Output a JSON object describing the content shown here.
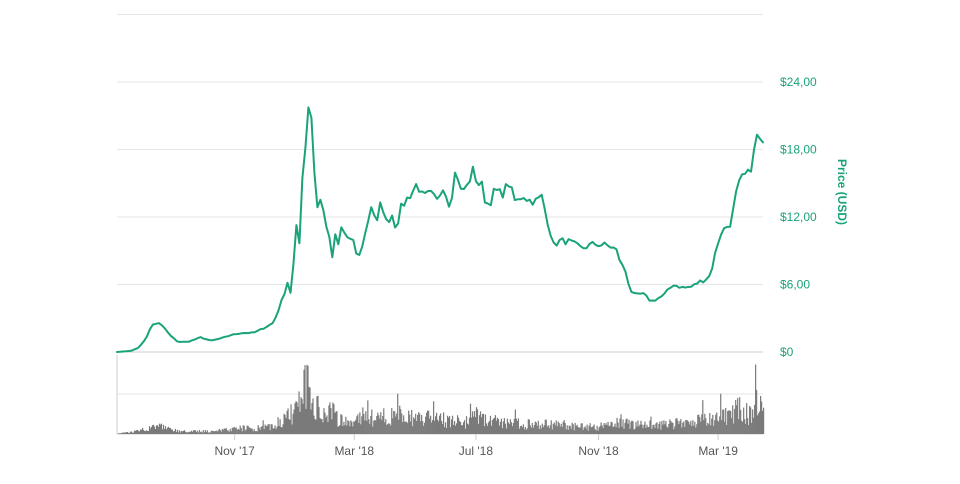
{
  "chart_data": {
    "type": "line",
    "title": "",
    "xlabel": "",
    "ylabel": "Price (USD)",
    "ylim": [
      0,
      28.8
    ],
    "y_tick_labels": [
      "$0",
      "$6,00",
      "$12,00",
      "$18,00",
      "$24,00"
    ],
    "x_tick_labels": [
      "Nov '17",
      "Mar '18",
      "Jul '18",
      "Nov '18",
      "Mar '19"
    ],
    "x_tick_dates": [
      "2017-11-01",
      "2018-03-01",
      "2018-07-01",
      "2018-11-01",
      "2019-03-01"
    ],
    "grid": true,
    "colors": {
      "price": "#1aa37a",
      "volume": "#7a7a7a",
      "grid": "#e6e6e6"
    },
    "series": [
      {
        "kind": "price",
        "x": [
          "2017-07-06",
          "2017-07-20",
          "2017-07-28",
          "2017-08-04",
          "2017-08-10",
          "2017-08-16",
          "2017-08-22",
          "2017-08-28",
          "2017-09-05",
          "2017-09-15",
          "2017-09-28",
          "2017-10-08",
          "2017-10-18",
          "2017-10-28",
          "2017-11-08",
          "2017-11-20",
          "2017-12-02",
          "2017-12-10",
          "2017-12-16",
          "2017-12-20",
          "2017-12-24",
          "2017-12-28",
          "2017-12-30",
          "2018-01-02",
          "2018-01-04",
          "2018-01-06",
          "2018-01-08",
          "2018-01-10",
          "2018-01-12",
          "2018-01-14",
          "2018-01-16",
          "2018-01-17",
          "2018-01-18",
          "2018-01-20",
          "2018-01-23",
          "2018-01-26",
          "2018-01-29",
          "2018-02-01",
          "2018-02-04",
          "2018-02-06",
          "2018-02-08",
          "2018-02-12",
          "2018-02-16",
          "2018-02-22",
          "2018-02-28",
          "2018-03-05",
          "2018-03-12",
          "2018-03-18",
          "2018-03-24",
          "2018-03-28",
          "2018-04-03",
          "2018-04-07",
          "2018-04-12",
          "2018-04-17",
          "2018-04-22",
          "2018-04-28",
          "2018-05-03",
          "2018-05-09",
          "2018-05-16",
          "2018-05-23",
          "2018-05-29",
          "2018-06-05",
          "2018-06-11",
          "2018-06-16",
          "2018-06-22",
          "2018-06-28",
          "2018-07-03",
          "2018-07-07",
          "2018-07-11",
          "2018-07-15",
          "2018-07-20",
          "2018-07-27",
          "2018-08-03",
          "2018-08-10",
          "2018-08-17",
          "2018-08-23",
          "2018-08-30",
          "2018-09-05",
          "2018-09-10",
          "2018-09-17",
          "2018-09-24",
          "2018-10-03",
          "2018-10-15",
          "2018-10-27",
          "2018-11-08",
          "2018-11-12",
          "2018-11-15",
          "2018-11-19",
          "2018-11-24",
          "2018-11-28",
          "2018-12-03",
          "2018-12-08",
          "2018-12-15",
          "2018-12-24",
          "2019-01-05",
          "2019-01-15",
          "2019-01-25",
          "2019-02-03",
          "2019-02-09",
          "2019-02-15",
          "2019-02-21",
          "2019-02-26",
          "2019-03-03",
          "2019-03-08",
          "2019-03-14",
          "2019-03-20",
          "2019-03-26",
          "2019-04-01",
          "2019-04-05",
          "2019-04-09",
          "2019-04-15"
        ],
        "y": [
          0,
          0.1,
          0.4,
          1.2,
          2.4,
          2.6,
          2.2,
          1.5,
          0.9,
          0.9,
          1.3,
          1.0,
          1.2,
          1.5,
          1.7,
          1.7,
          2.2,
          2.6,
          4.0,
          5.0,
          6.2,
          5.0,
          7.8,
          11.0,
          7.5,
          11.8,
          15.8,
          20.5,
          16.0,
          22.0,
          24.5,
          21.0,
          23.0,
          16.0,
          13.0,
          13.5,
          12.5,
          11.3,
          10.0,
          5.4,
          11.5,
          9.0,
          11.0,
          10.2,
          9.7,
          8.2,
          10.5,
          13.0,
          11.5,
          13.5,
          11.2,
          12.5,
          11.0,
          12.8,
          13.5,
          14.2,
          15.0,
          13.7,
          14.1,
          13.4,
          14.8,
          13.0,
          16.4,
          14.3,
          14.7,
          16.1,
          15.0,
          14.8,
          13.2,
          13.2,
          14.4,
          14.0,
          15.0,
          13.2,
          14.0,
          13.5,
          13.4,
          13.8,
          12.0,
          9.5,
          9.9,
          9.8,
          9.2,
          9.6,
          9.5,
          9.4,
          9.3,
          9.0,
          7.8,
          7.2,
          5.5,
          5.0,
          5.2,
          4.5,
          5.0,
          6.0,
          5.7,
          5.8,
          6.2,
          6.4,
          6.8,
          8.7,
          10.5,
          11.0,
          11.5,
          14.5,
          15.6,
          15.8,
          17.2,
          19.2,
          18.2
        ]
      },
      {
        "kind": "volume",
        "x": [
          "2017-07-06",
          "2017-07-20",
          "2017-08-04",
          "2017-08-10",
          "2017-08-16",
          "2017-08-22",
          "2017-08-28",
          "2017-09-05",
          "2017-09-15",
          "2017-09-28",
          "2017-10-08",
          "2017-10-18",
          "2017-10-28",
          "2017-11-08",
          "2017-11-20",
          "2017-12-02",
          "2017-12-10",
          "2017-12-16",
          "2017-12-20",
          "2017-12-24",
          "2017-12-28",
          "2018-01-02",
          "2018-01-06",
          "2018-01-08",
          "2018-01-10",
          "2018-01-12",
          "2018-01-14",
          "2018-01-16",
          "2018-01-18",
          "2018-01-20",
          "2018-01-23",
          "2018-01-26",
          "2018-02-01",
          "2018-02-06",
          "2018-02-12",
          "2018-02-20",
          "2018-02-28",
          "2018-03-06",
          "2018-03-12",
          "2018-03-18",
          "2018-03-24",
          "2018-04-01",
          "2018-04-08",
          "2018-04-15",
          "2018-04-22",
          "2018-05-01",
          "2018-05-08",
          "2018-05-15",
          "2018-05-22",
          "2018-06-01",
          "2018-06-10",
          "2018-06-20",
          "2018-07-01",
          "2018-07-10",
          "2018-07-20",
          "2018-08-01",
          "2018-08-15",
          "2018-09-01",
          "2018-09-15",
          "2018-10-01",
          "2018-10-15",
          "2018-11-01",
          "2018-11-15",
          "2018-11-22",
          "2018-12-01",
          "2018-12-15",
          "2019-01-01",
          "2019-01-15",
          "2019-02-01",
          "2019-02-15",
          "2019-03-01",
          "2019-03-10",
          "2019-03-20",
          "2019-04-01",
          "2019-04-10",
          "2019-04-15"
        ],
        "y": [
          0.2,
          0.6,
          2.0,
          3.0,
          2.5,
          2.2,
          1.5,
          1.0,
          0.8,
          1.0,
          0.9,
          1.2,
          1.5,
          2.0,
          1.8,
          2.5,
          3.0,
          4.5,
          5.5,
          6.0,
          7.0,
          9.0,
          11.0,
          13.0,
          16.0,
          19.0,
          21.0,
          17.0,
          12.0,
          10.0,
          8.0,
          7.0,
          6.0,
          9.0,
          5.0,
          4.5,
          4.0,
          5.0,
          8.5,
          6.0,
          5.0,
          6.5,
          6.0,
          7.0,
          6.0,
          5.0,
          5.5,
          6.5,
          5.0,
          4.5,
          5.0,
          4.0,
          6.0,
          5.0,
          4.5,
          4.0,
          3.5,
          3.0,
          3.5,
          3.0,
          2.5,
          2.5,
          3.0,
          4.5,
          3.5,
          3.0,
          3.0,
          3.5,
          4.0,
          5.0,
          5.5,
          6.5,
          8.5,
          7.0,
          10.0,
          8.0
        ]
      }
    ]
  }
}
